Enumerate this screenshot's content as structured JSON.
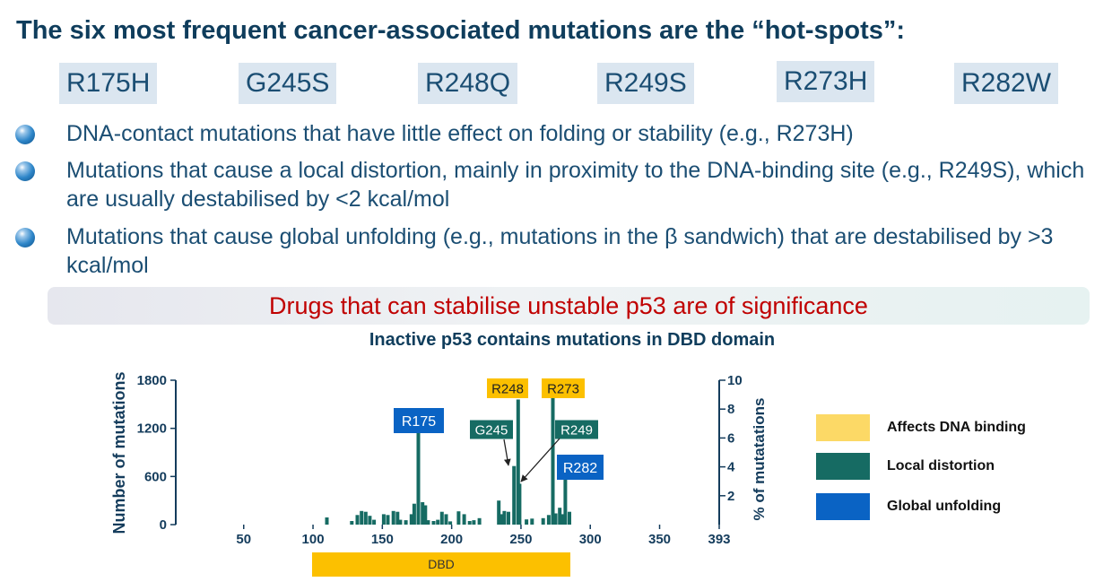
{
  "slide": {
    "title": "The six most frequent cancer-associated mutations are the “hot-spots”:",
    "hotspots": [
      "R175H",
      "G245S",
      "R248Q",
      "R249S",
      "R273H",
      "R282W"
    ],
    "bullets": [
      "DNA-contact mutations that have little effect on folding or stability (e.g., R273H)",
      "Mutations that cause a local distortion, mainly in proximity to the DNA-binding site (e.g., R249S), which are usually destabilised by <2 kcal/mol",
      "Mutations that cause global unfolding (e.g., mutations in the β sandwich) that are destabilised by >3 kcal/mol"
    ],
    "banner": "Drugs that can stabilise unstable p53 are of significance"
  },
  "colors": {
    "dna_binding": "#fcc000",
    "local_distortion": "#166b63",
    "global_unfolding": "#0a63c4",
    "bars": "#166b63",
    "axis": "#143c5c",
    "domain_bar": "#fcc000"
  },
  "chart_data": {
    "type": "bar",
    "title": "Inactive p53 contains mutations in DBD domain",
    "xlabel": "",
    "ylabel": "Number of mutations",
    "ylabel_right": "% of mutatations",
    "xlim": [
      1,
      393
    ],
    "ylim": [
      0,
      1800
    ],
    "ylim_right": [
      0,
      10
    ],
    "x_ticks": [
      50,
      100,
      150,
      200,
      250,
      300,
      350,
      393
    ],
    "y_ticks": [
      0,
      600,
      1200,
      1800
    ],
    "y_ticks_right": [
      2,
      4,
      6,
      8,
      10
    ],
    "series": [
      {
        "x": [
          110,
          128,
          132,
          135,
          138,
          141,
          144,
          151,
          154,
          158,
          161,
          163,
          167,
          171,
          173,
          176,
          179,
          181,
          183,
          187,
          190,
          193,
          196,
          199,
          205,
          209,
          213,
          216,
          220,
          234,
          236,
          238,
          241,
          245,
          248,
          249,
          254,
          258,
          266,
          270,
          273,
          275,
          278,
          280,
          282,
          285
        ],
        "values": [
          90,
          45,
          120,
          170,
          160,
          110,
          60,
          130,
          120,
          170,
          160,
          60,
          55,
          130,
          260,
          1150,
          280,
          240,
          55,
          45,
          60,
          160,
          130,
          40,
          165,
          130,
          45,
          55,
          80,
          300,
          130,
          170,
          160,
          730,
          1560,
          510,
          65,
          75,
          80,
          120,
          1580,
          140,
          210,
          130,
          570,
          160
        ]
      }
    ],
    "annotations": [
      {
        "text": "R175",
        "x": 175,
        "category": "global_unfolding"
      },
      {
        "text": "G245",
        "x": 245,
        "category": "local_distortion"
      },
      {
        "text": "R248",
        "x": 248,
        "category": "dna_binding"
      },
      {
        "text": "R249",
        "x": 249,
        "category": "local_distortion"
      },
      {
        "text": "R273",
        "x": 273,
        "category": "dna_binding"
      },
      {
        "text": "R282",
        "x": 282,
        "category": "global_unfolding"
      }
    ],
    "domain": {
      "label": "DBD",
      "start": 102,
      "end": 292
    },
    "legend": {
      "position": "right",
      "items": [
        {
          "label": "Affects DNA binding",
          "color": "#fcd966"
        },
        {
          "label": "Local distortion",
          "color": "#166b63"
        },
        {
          "label": "Global unfolding",
          "color": "#0a63c4"
        }
      ]
    }
  }
}
